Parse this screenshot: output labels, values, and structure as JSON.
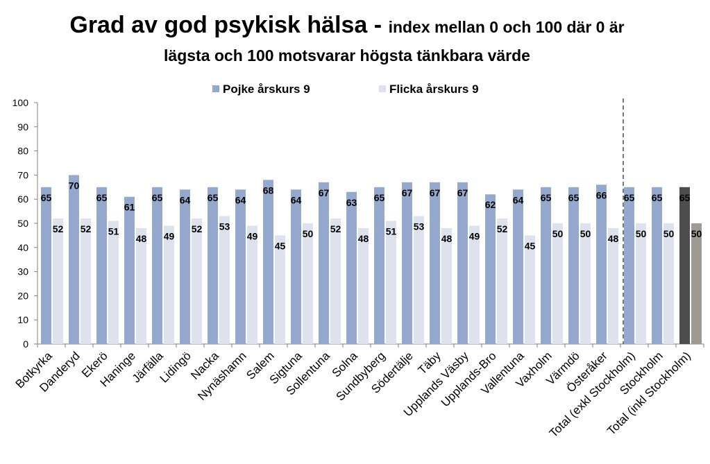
{
  "title": {
    "main": "Grad av god psykisk hälsa",
    "dash": " - ",
    "sub_line1": "index mellan 0 och 100 där 0 är",
    "sub_line2": "lägsta och 100 motsvarar högsta tänkbara värde"
  },
  "colors": {
    "boy": "#95a9cf",
    "girl": "#dde2ef",
    "boy_total": "#4d4d4d",
    "girl_total": "#a09a94",
    "axis": "#7f7f7f"
  },
  "chart_data": {
    "type": "bar",
    "title": "Grad av god psykisk hälsa - index mellan 0 och 100 där 0 är lägsta och 100 motsvarar högsta tänkbara värde",
    "categories": [
      "Botkyrka",
      "Danderyd",
      "Ekerö",
      "Haninge",
      "Järfälla",
      "Lidingö",
      "Nacka",
      "Nynäshamn",
      "Salem",
      "Sigtuna",
      "Sollentuna",
      "Solna",
      "Sundbyberg",
      "Södertälje",
      "Täby",
      "Upplands Väsby",
      "Upplands-Bro",
      "Vallentuna",
      "Vaxholm",
      "Värmdö",
      "Österåker",
      "Total (exkl Stockholm)",
      "Stockholm",
      "Total (inkl Stockholm)"
    ],
    "series": [
      {
        "name": "Pojke årskurs 9",
        "values": [
          65,
          70,
          65,
          61,
          65,
          64,
          65,
          64,
          68,
          64,
          67,
          63,
          65,
          67,
          67,
          67,
          62,
          64,
          65,
          65,
          66,
          65,
          65,
          65
        ]
      },
      {
        "name": "Flicka årskurs 9",
        "values": [
          52,
          52,
          51,
          48,
          49,
          52,
          53,
          49,
          45,
          50,
          52,
          48,
          51,
          53,
          48,
          49,
          52,
          45,
          50,
          50,
          48,
          50,
          50,
          50
        ]
      }
    ],
    "yticks": [
      "0",
      "10",
      "20",
      "30",
      "40",
      "50",
      "60",
      "70",
      "80",
      "90",
      "100"
    ],
    "ylim": [
      0,
      100
    ],
    "legend": "top",
    "grid": false
  }
}
